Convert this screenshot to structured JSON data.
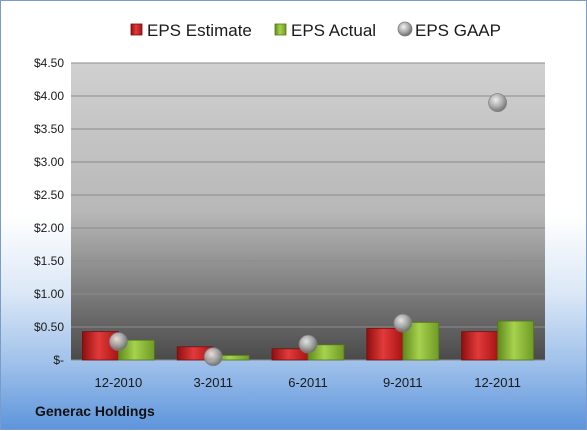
{
  "company": "Generac Holdings",
  "chart_data": {
    "type": "bar",
    "categories": [
      "12-2010",
      "3-2011",
      "6-2011",
      "9-2011",
      "12-2011"
    ],
    "series": [
      {
        "name": "EPS Estimate",
        "kind": "bar",
        "color": "#cc1f1f",
        "values": [
          0.43,
          0.2,
          0.17,
          0.48,
          0.43
        ]
      },
      {
        "name": "EPS Actual",
        "kind": "bar",
        "color": "#8db83a",
        "values": [
          0.3,
          0.07,
          0.23,
          0.57,
          0.59
        ]
      },
      {
        "name": "EPS GAAP",
        "kind": "marker",
        "color": "#a8a8a8",
        "values": [
          0.28,
          0.05,
          0.24,
          0.56,
          3.9
        ]
      }
    ],
    "yticks": [
      "$-",
      "$0.50",
      "$1.00",
      "$1.50",
      "$2.00",
      "$2.50",
      "$3.00",
      "$3.50",
      "$4.00",
      "$4.50"
    ],
    "ylim": [
      0,
      4.5
    ],
    "grid": true,
    "legend_position": "top"
  }
}
